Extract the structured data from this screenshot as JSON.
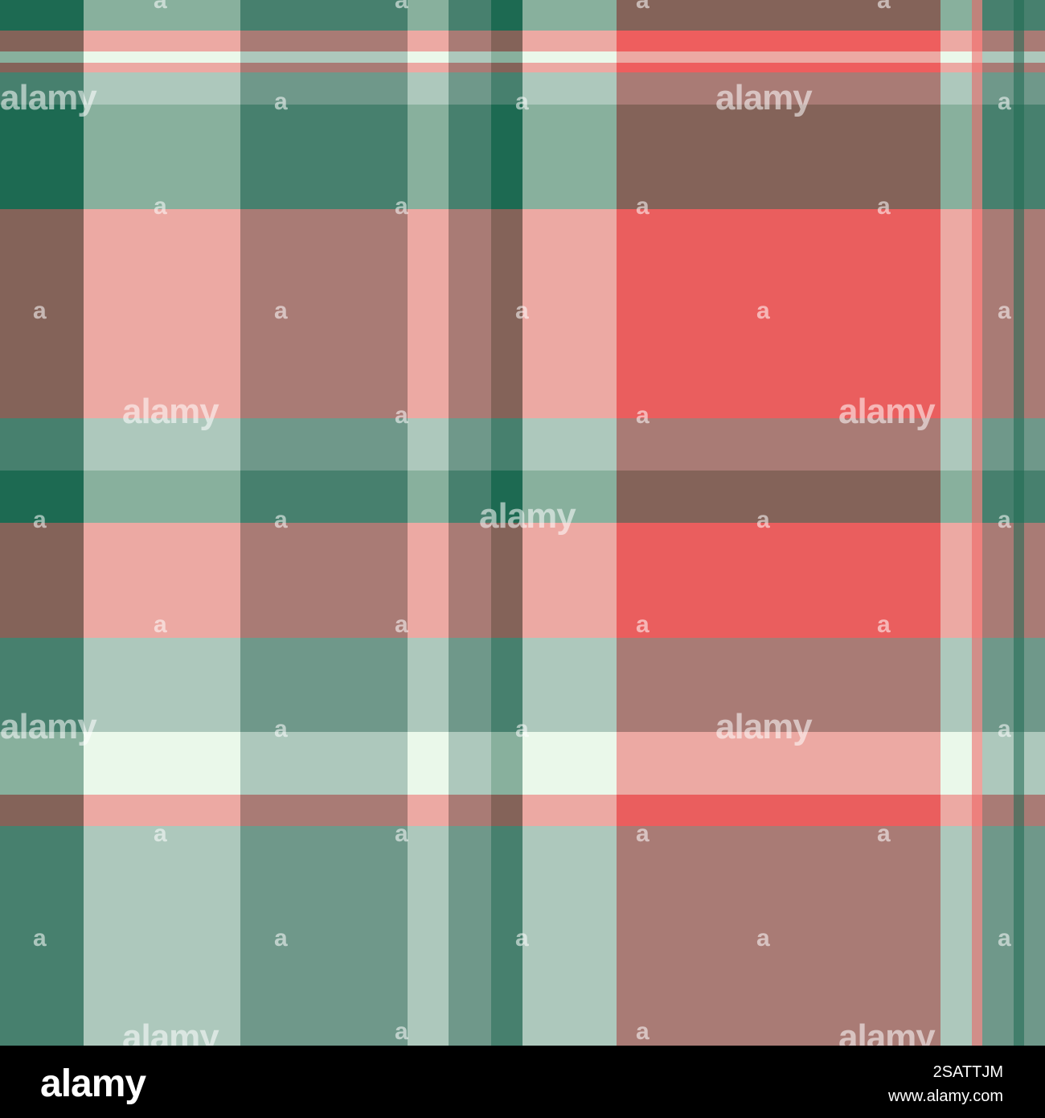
{
  "image": {
    "subject": "plaid-tartan-pattern",
    "palette": {
      "dark_green": "#1d6a52",
      "teal_green": "#47806e",
      "sage_green": "#88b09d",
      "pale_sage": "#adc8bc",
      "cream": "#eaf8ea",
      "salmon": "#ee5e5e",
      "pink": "#eca9a3",
      "dusty_rose": "#a97b75",
      "brown": "#846359"
    }
  },
  "watermark": {
    "big_text": "alamy",
    "small_text": "a"
  },
  "footer": {
    "logo": "alamy",
    "image_id": "2SATTJM",
    "url": "www.alamy.com"
  }
}
